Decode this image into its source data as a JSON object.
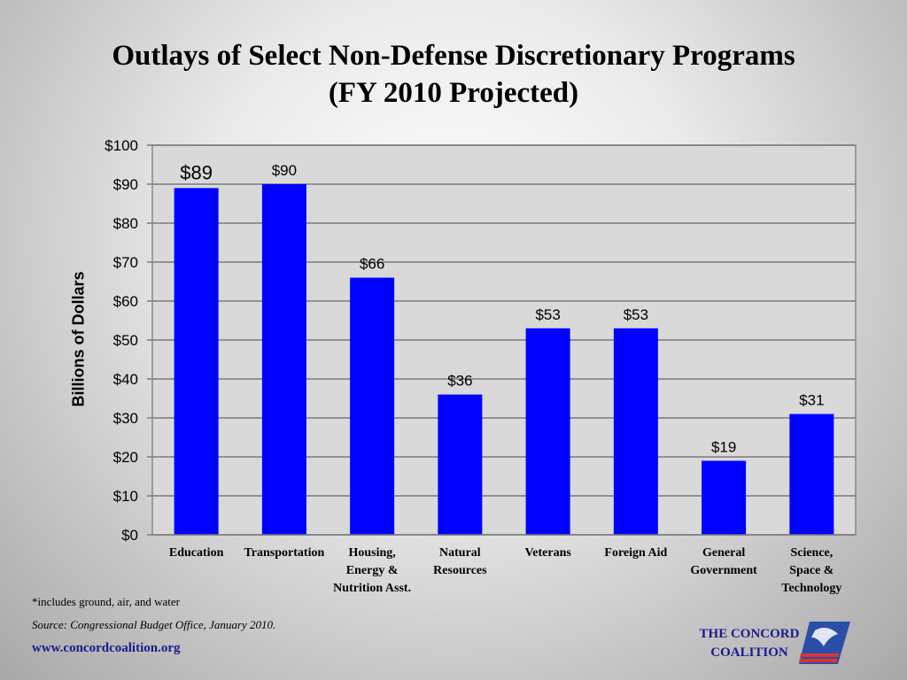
{
  "slide": {
    "title_line1": "Outlays of Select Non-Defense Discretionary Programs",
    "title_line2": "(FY 2010 Projected)",
    "footnote": "*includes ground, air, and water",
    "source": "Source: Congressional Budget Office, January 2010.",
    "website": "www.concordcoalition.org",
    "logo_line1": "THE CONCORD",
    "logo_line2": "COALITION",
    "logo_icon": "eagle-flag-icon"
  },
  "chart_data": {
    "type": "bar",
    "title": "Outlays of Select Non-Defense Discretionary Programs (FY 2010 Projected)",
    "ylabel": "Billions of Dollars",
    "xlabel": "",
    "categories": [
      [
        "Education"
      ],
      [
        "Transportation"
      ],
      [
        "Housing,",
        "Energy &",
        "Nutrition Asst."
      ],
      [
        "Natural",
        "Resources"
      ],
      [
        "Veterans"
      ],
      [
        "Foreign Aid"
      ],
      [
        "General",
        "Government"
      ],
      [
        "Science,",
        "Space &",
        "Technology"
      ]
    ],
    "values": [
      89,
      90,
      66,
      36,
      53,
      53,
      19,
      31
    ],
    "data_labels": [
      "$89",
      "$90",
      "$66",
      "$36",
      "$53",
      "$53",
      "$19",
      "$31"
    ],
    "ylim": [
      0,
      100
    ],
    "yticks": [
      0,
      10,
      20,
      30,
      40,
      50,
      60,
      70,
      80,
      90,
      100
    ],
    "ytick_labels": [
      "$0",
      "$10",
      "$20",
      "$30",
      "$40",
      "$50",
      "$60",
      "$70",
      "$80",
      "$90",
      "$100"
    ],
    "grid": true,
    "bar_color": "#0000ff",
    "plot_background": "#d9d9d9"
  }
}
